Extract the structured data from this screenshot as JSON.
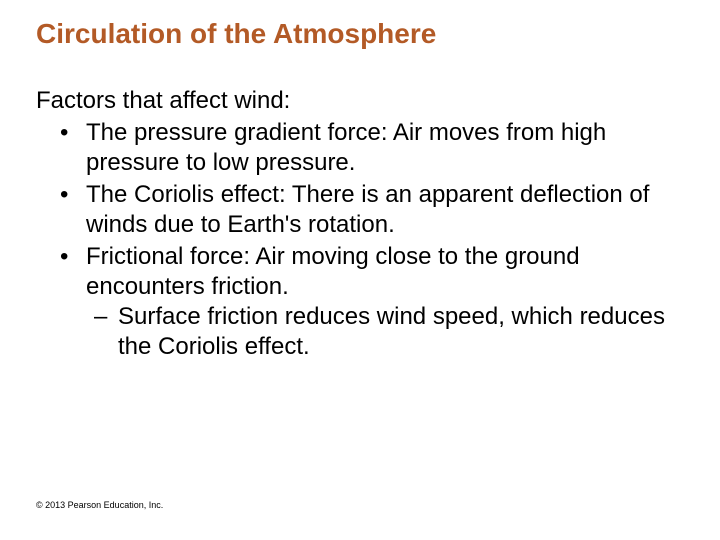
{
  "title": "Circulation of the Atmosphere",
  "intro": "Factors that affect wind:",
  "bullets": [
    "The pressure gradient force: Air moves from high pressure to low pressure.",
    "The Coriolis effect: There is an apparent deflection of winds due to Earth's rotation.",
    "Frictional force: Air moving close to the ground encounters friction."
  ],
  "sub_bullet": "Surface friction reduces wind speed, which reduces the Coriolis effect.",
  "copyright": "© 2013 Pearson Education, Inc.",
  "colors": {
    "title_color": "#b35a26",
    "text_color": "#000000",
    "background": "#ffffff"
  },
  "typography": {
    "title_fontsize": 28,
    "body_fontsize": 24,
    "copyright_fontsize": 9,
    "title_weight": "bold"
  }
}
